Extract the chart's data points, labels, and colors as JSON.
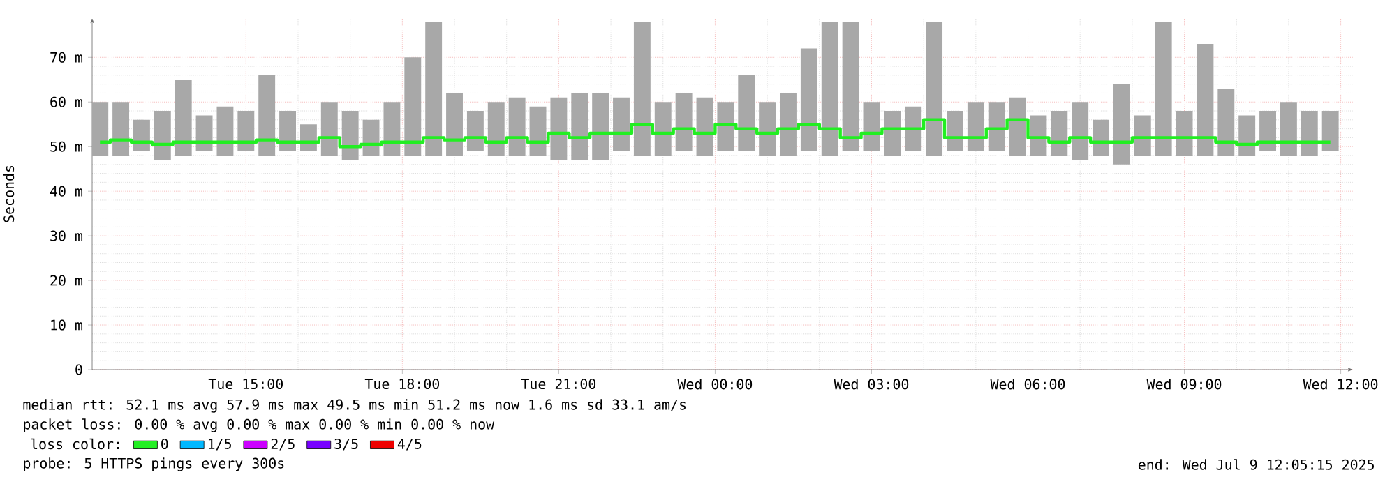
{
  "chart_data": {
    "type": "bar",
    "ylabel": "Seconds",
    "legend_title": "loss color:",
    "x": [
      "2025-07-08T12:12",
      "2025-07-08T12:36",
      "2025-07-08T13:00",
      "2025-07-08T13:24",
      "2025-07-08T13:48",
      "2025-07-08T14:12",
      "2025-07-08T14:36",
      "2025-07-08T15:00",
      "2025-07-08T15:24",
      "2025-07-08T15:48",
      "2025-07-08T16:12",
      "2025-07-08T16:36",
      "2025-07-08T17:00",
      "2025-07-08T17:24",
      "2025-07-08T17:48",
      "2025-07-08T18:12",
      "2025-07-08T18:36",
      "2025-07-08T19:00",
      "2025-07-08T19:24",
      "2025-07-08T19:48",
      "2025-07-08T20:12",
      "2025-07-08T20:36",
      "2025-07-08T21:00",
      "2025-07-08T21:24",
      "2025-07-08T21:48",
      "2025-07-08T22:12",
      "2025-07-08T22:36",
      "2025-07-08T23:00",
      "2025-07-08T23:24",
      "2025-07-08T23:48",
      "2025-07-09T00:12",
      "2025-07-09T00:36",
      "2025-07-09T01:00",
      "2025-07-09T01:24",
      "2025-07-09T01:48",
      "2025-07-09T02:12",
      "2025-07-09T02:36",
      "2025-07-09T03:00",
      "2025-07-09T03:24",
      "2025-07-09T03:48",
      "2025-07-09T04:12",
      "2025-07-09T04:36",
      "2025-07-09T05:00",
      "2025-07-09T05:24",
      "2025-07-09T05:48",
      "2025-07-09T06:12",
      "2025-07-09T06:36",
      "2025-07-09T07:00",
      "2025-07-09T07:24",
      "2025-07-09T07:48",
      "2025-07-09T08:12",
      "2025-07-09T08:36",
      "2025-07-09T09:00",
      "2025-07-09T09:24",
      "2025-07-09T09:48",
      "2025-07-09T10:12",
      "2025-07-09T10:36",
      "2025-07-09T11:00",
      "2025-07-09T11:24",
      "2025-07-09T11:48"
    ],
    "series": [
      {
        "color": "#a8a8a8",
        "base": [
          48,
          48,
          49,
          47,
          48,
          49,
          48,
          49,
          48,
          49,
          49,
          48,
          47,
          48,
          48,
          48,
          48,
          48,
          49,
          48,
          48,
          48,
          47,
          47,
          47,
          49,
          48,
          48,
          49,
          48,
          49,
          49,
          48,
          48,
          49,
          48,
          49,
          49,
          48,
          49,
          48,
          49,
          49,
          49,
          48,
          48,
          48,
          47,
          48,
          46,
          48,
          48,
          48,
          48,
          48,
          48,
          49,
          48,
          48,
          49
        ],
        "values": [
          12,
          12,
          7,
          11,
          17,
          8,
          11,
          9,
          18,
          9,
          6,
          12,
          11,
          8,
          12,
          22,
          30,
          14,
          9,
          12,
          13,
          11,
          14,
          15,
          15,
          12,
          30,
          12,
          13,
          13,
          11,
          17,
          12,
          14,
          23,
          30,
          29,
          11,
          10,
          10,
          30,
          9,
          11,
          11,
          13,
          9,
          10,
          13,
          8,
          18,
          9,
          30,
          10,
          25,
          15,
          9,
          9,
          12,
          10,
          9
        ]
      },
      {
        "type": "step",
        "name": "0",
        "color": "#22ee22",
        "values": [
          51,
          51.5,
          51,
          50.5,
          51,
          51,
          51,
          51,
          51.5,
          51,
          51,
          52,
          50,
          50.5,
          51,
          51,
          52,
          51.5,
          52,
          51,
          52,
          51,
          53,
          52,
          53,
          53,
          55,
          53,
          54,
          53,
          55,
          54,
          53,
          54,
          55,
          54,
          52,
          53,
          54,
          54,
          56,
          52,
          52,
          54,
          56,
          52,
          51,
          52,
          51,
          51,
          52,
          52,
          52,
          52,
          51,
          50.5,
          51,
          51,
          51,
          51
        ]
      },
      {
        "type": "step",
        "name": "1/5",
        "color": "#00b8ff",
        "values": [
          null,
          null,
          null,
          null,
          null,
          null,
          null,
          null,
          null,
          null,
          null,
          null,
          null,
          null,
          null,
          null,
          null,
          null,
          null,
          null,
          null,
          null,
          null,
          null,
          null,
          null,
          null,
          null,
          null,
          null,
          null,
          null,
          null,
          null,
          null,
          null,
          null,
          null,
          null,
          null,
          null,
          null,
          null,
          null,
          null,
          null,
          null,
          null,
          null,
          null,
          null,
          null,
          null,
          null,
          null,
          null,
          null,
          null,
          null,
          null
        ]
      },
      {
        "type": "step",
        "name": "2/5",
        "color": "#cc00ff",
        "values": [
          null,
          null,
          null,
          null,
          null,
          null,
          null,
          null,
          null,
          null,
          null,
          null,
          null,
          null,
          null,
          null,
          null,
          null,
          null,
          null,
          null,
          null,
          null,
          null,
          null,
          null,
          null,
          null,
          null,
          null,
          null,
          null,
          null,
          null,
          null,
          null,
          null,
          null,
          null,
          null,
          null,
          null,
          null,
          null,
          null,
          null,
          null,
          null,
          null,
          null,
          null,
          null,
          null,
          null,
          null,
          null,
          null,
          null,
          null,
          null
        ]
      },
      {
        "type": "step",
        "name": "3/5",
        "color": "#7700ff",
        "values": [
          null,
          null,
          null,
          null,
          null,
          null,
          null,
          null,
          null,
          null,
          null,
          null,
          null,
          null,
          null,
          null,
          null,
          null,
          null,
          null,
          null,
          null,
          null,
          null,
          null,
          null,
          null,
          null,
          null,
          null,
          null,
          null,
          null,
          null,
          null,
          null,
          null,
          null,
          null,
          null,
          null,
          null,
          null,
          null,
          null,
          null,
          null,
          null,
          null,
          null,
          null,
          null,
          null,
          null,
          null,
          null,
          null,
          null,
          null,
          null
        ]
      },
      {
        "type": "step",
        "name": "4/5",
        "color": "#ee0000",
        "values": [
          null,
          null,
          null,
          null,
          null,
          null,
          null,
          null,
          null,
          null,
          null,
          null,
          null,
          null,
          null,
          null,
          null,
          null,
          null,
          null,
          null,
          null,
          null,
          null,
          null,
          null,
          null,
          null,
          null,
          null,
          null,
          null,
          null,
          null,
          null,
          null,
          null,
          null,
          null,
          null,
          null,
          null,
          null,
          null,
          null,
          null,
          null,
          null,
          null,
          null,
          null,
          null,
          null,
          null,
          null,
          null,
          null,
          null,
          null,
          null
        ]
      }
    ],
    "xlim": [
      "2025-07-08T12:03",
      "2025-07-09T12:14"
    ],
    "xticks": [
      {
        "value": "2025-07-08T15:00",
        "label": "Tue 15:00"
      },
      {
        "value": "2025-07-08T18:00",
        "label": "Tue 18:00"
      },
      {
        "value": "2025-07-08T21:00",
        "label": "Tue 21:00"
      },
      {
        "value": "2025-07-09T00:00",
        "label": "Wed 00:00"
      },
      {
        "value": "2025-07-09T03:00",
        "label": "Wed 03:00"
      },
      {
        "value": "2025-07-09T06:00",
        "label": "Wed 06:00"
      },
      {
        "value": "2025-07-09T09:00",
        "label": "Wed 09:00"
      },
      {
        "value": "2025-07-09T12:00",
        "label": "Wed 12:00"
      }
    ],
    "ylim": [
      0,
      78.8
    ],
    "yticks": [
      0,
      {
        "value": 10,
        "label": "10 m"
      },
      {
        "value": 20,
        "label": "20 m"
      },
      {
        "value": 30,
        "label": "30 m"
      },
      {
        "value": 40,
        "label": "40 m"
      },
      {
        "value": 50,
        "label": "50 m"
      },
      {
        "value": 60,
        "label": "60 m"
      },
      {
        "value": 70,
        "label": "70 m"
      }
    ],
    "grid": true,
    "legend": "bottom",
    "annotations": [
      "median rtt:  52.1 ms avg  57.9 ms max  49.5 ms min  51.2 ms now  1.6 ms sd  33.1   am/s",
      "packet loss: 0.00 % avg  0.00 % max  0.00 % min  0.00 % now",
      "probe:       5 HTTPS pings every 300s",
      "end: Wed Jul  9 12:05:15 2025"
    ]
  }
}
